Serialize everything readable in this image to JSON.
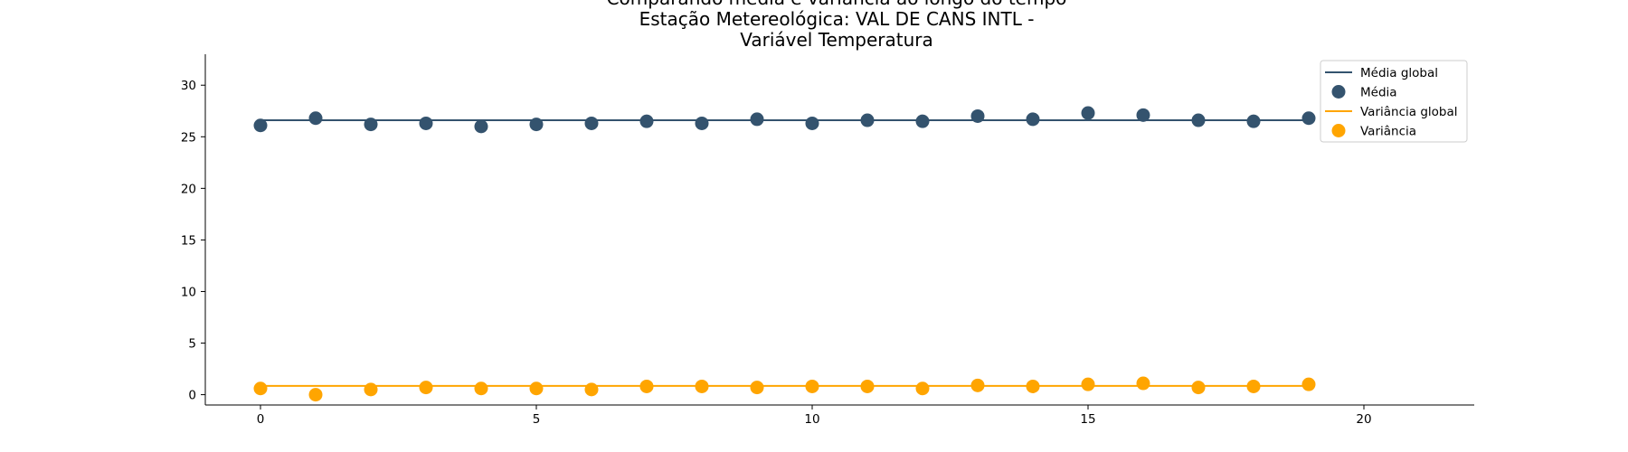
{
  "chart_data": {
    "type": "scatter",
    "title_lines": [
      "Comparando média e variância ao longo do tempo",
      "Estação Metereológica: VAL DE CANS INTL -",
      "Variável Temperatura"
    ],
    "xlabel": "",
    "ylabel": "",
    "xlim": [
      -1,
      22
    ],
    "ylim": [
      -1,
      33
    ],
    "xticks": [
      0,
      5,
      10,
      15,
      20
    ],
    "yticks": [
      0,
      5,
      10,
      15,
      20,
      25,
      30
    ],
    "grid": false,
    "legend_position": "top-right",
    "x": [
      0,
      1,
      2,
      3,
      4,
      5,
      6,
      7,
      8,
      9,
      10,
      11,
      12,
      13,
      14,
      15,
      16,
      17,
      18,
      19
    ],
    "series": [
      {
        "name": "Média global",
        "kind": "line",
        "color": "#34536e",
        "x": [
          0,
          19
        ],
        "values": [
          26.6,
          26.6
        ]
      },
      {
        "name": "Média",
        "kind": "scatter",
        "color": "#34536e",
        "values": [
          26.1,
          26.8,
          26.2,
          26.3,
          26.0,
          26.2,
          26.3,
          26.5,
          26.3,
          26.7,
          26.3,
          26.6,
          26.5,
          27.0,
          26.7,
          27.3,
          27.1,
          26.6,
          26.5,
          26.8
        ]
      },
      {
        "name": "Variância global",
        "kind": "line",
        "color": "#ffa500",
        "x": [
          0,
          19
        ],
        "values": [
          0.85,
          0.85
        ]
      },
      {
        "name": "Variância",
        "kind": "scatter",
        "color": "#ffa500",
        "values": [
          0.6,
          0.0,
          0.5,
          0.7,
          0.6,
          0.6,
          0.5,
          0.8,
          0.8,
          0.7,
          0.8,
          0.8,
          0.6,
          0.9,
          0.8,
          1.0,
          1.1,
          0.7,
          0.8,
          1.0
        ]
      }
    ]
  }
}
